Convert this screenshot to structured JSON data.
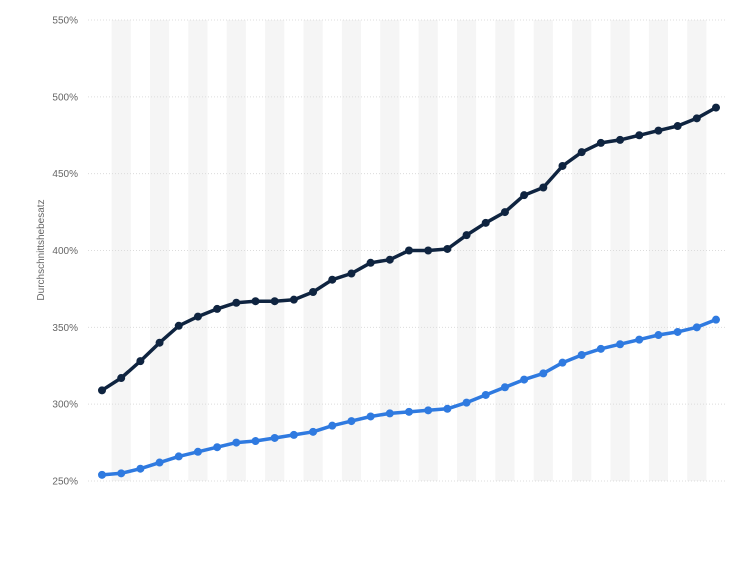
{
  "chart_data": {
    "type": "line",
    "title": "",
    "xlabel": "",
    "ylabel": "Durchschnittshebesatz",
    "ylim": [
      250,
      550
    ],
    "yticks": [
      "250%",
      "300%",
      "350%",
      "400%",
      "450%",
      "500%",
      "550%"
    ],
    "y_unit": "%",
    "grid": true,
    "legend": "none",
    "point_count": 33,
    "series": [
      {
        "color": "#0f2440",
        "values": [
          309,
          317,
          328,
          340,
          351,
          357,
          362,
          366,
          367,
          367,
          368,
          373,
          381,
          385,
          392,
          394,
          400,
          400,
          401,
          410,
          418,
          425,
          436,
          441,
          455,
          464,
          470,
          472,
          475,
          478,
          481,
          486,
          493
        ]
      },
      {
        "color": "#2f7ae0",
        "values": [
          254,
          255,
          258,
          262,
          266,
          269,
          272,
          275,
          276,
          278,
          280,
          282,
          286,
          289,
          292,
          294,
          295,
          296,
          297,
          301,
          306,
          311,
          316,
          320,
          327,
          332,
          336,
          339,
          342,
          345,
          347,
          350,
          355
        ]
      }
    ]
  }
}
